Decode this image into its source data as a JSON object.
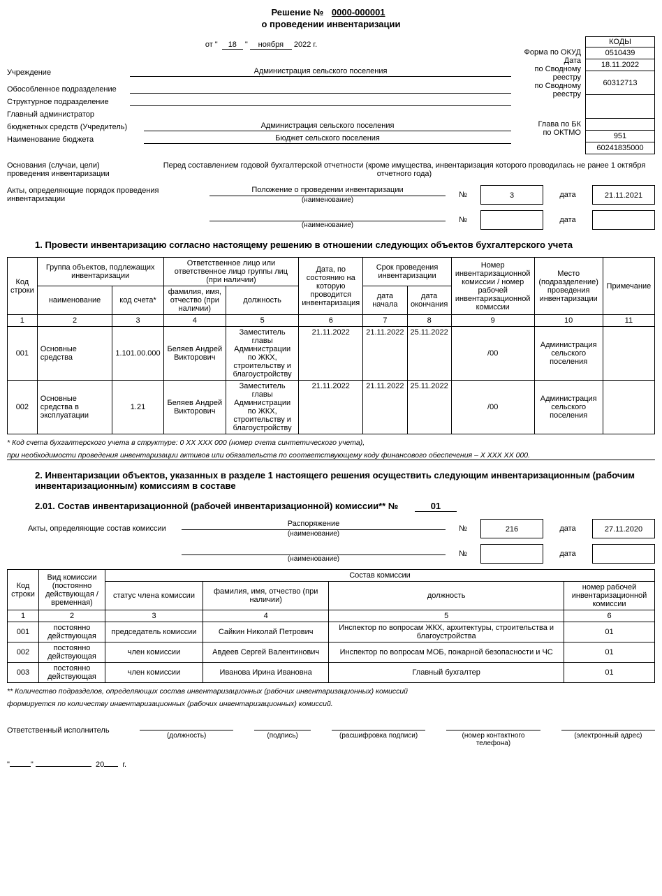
{
  "header": {
    "title_prefix": "Решение  №",
    "title_number": "0000-000001",
    "subtitle": "о проведении инвентаризации",
    "date_from": "от",
    "date_day": "18",
    "date_month": "ноября",
    "date_year": "2022 г."
  },
  "codes": {
    "header": "КОДЫ",
    "okud": "0510439",
    "date": "18.11.2022",
    "svod1": "60312713",
    "svod2": "",
    "empty1": "",
    "bk": "951",
    "oktmo": "60241835000"
  },
  "right_labels": {
    "okud": "Форма по ОКУД",
    "date": "Дата",
    "svod1a": "по Сводному",
    "svod1b": "реестру",
    "svod2a": "по Сводному",
    "svod2b": "реестру",
    "bk": "Глава по БК",
    "oktmo": "по ОКТМО"
  },
  "fields": {
    "institution_label": "Учреждение",
    "institution": "Администрация сельского поселения",
    "subdivision_label": "Обособленное подразделение",
    "subdivision": "",
    "struct_label": "Структурное подразделение",
    "struct": "",
    "admin_label1": "Главный администратор",
    "admin_label2": "бюджетных средств (Учредитель)",
    "admin": "Администрация сельского поселения",
    "budget_label": "Наименование бюджета",
    "budget": "Бюджет сельского поселения"
  },
  "reason": {
    "label1": "Основания (случаи, цели)",
    "label2": "проведения инвентаризации",
    "value": "Перед составлением годовой бухгалтерской отчетности (кроме имущества, инвентаризация которого проводилась не ранее 1 октября отчетного года)"
  },
  "acts": {
    "label": "Акты, определяющие порядок проведения инвентаризации",
    "name1": "Положение о проведении инвентаризации",
    "sub": "(наименование)",
    "no_label": "№",
    "no1": "3",
    "date_label": "дата",
    "date1": "21.11.2021",
    "name2": "",
    "no2": "",
    "date2": ""
  },
  "section1": {
    "title": "1. Провести инвентаризацию согласно настоящему решению в отношении следующих объектов бухгалтерского учета",
    "headers": {
      "code": "Код строки",
      "group": "Группа объектов, подлежащих инвентаризации",
      "group_name": "наименование",
      "group_code": "код счета*",
      "resp": "Ответственное лицо или ответственное лицо группы лиц (при наличии)",
      "resp_fio": "фамилия, имя, отчество (при наличии)",
      "resp_pos": "должность",
      "asof": "Дата, по состоянию на которую проводится инвентаризация",
      "period": "Срок проведения инвентаризации",
      "period_start": "дата начала",
      "period_end": "дата окончания",
      "commission": "Номер инвентаризационной комиссии / номер рабочей инвентаризационной комиссии",
      "place": "Место (подразделение) проведения инвентаризации",
      "note": "Примечание"
    },
    "colnums": [
      "1",
      "2",
      "3",
      "4",
      "5",
      "6",
      "7",
      "8",
      "9",
      "10",
      "11"
    ],
    "rows": [
      {
        "code": "001",
        "name": "Основные средства",
        "acct": "1.101.00.000",
        "fio": "Беляев Андрей Викторович",
        "pos": "Заместитель главы Администрации по ЖКХ, строительству и благоустройству",
        "asof": "21.11.2022",
        "start": "21.11.2022",
        "end": "25.11.2022",
        "comm": "/00",
        "place": "Администрация сельского поселения",
        "note": ""
      },
      {
        "code": "002",
        "name": "Основные средства в эксплуатации",
        "acct": "1.21",
        "fio": "Беляев Андрей Викторович",
        "pos": "Заместитель главы Администрации по ЖКХ, строительству и благоустройству",
        "asof": "21.11.2022",
        "start": "21.11.2022",
        "end": "25.11.2022",
        "comm": "/00",
        "place": "Администрация сельского поселения",
        "note": ""
      }
    ]
  },
  "footnote1a": "* Код счета бухгалтерского учета в структуре: 0 XX XXX 000 (номер счета синтетического учета),",
  "footnote1b": "при необходимости проведения инвентаризации активов или обязательств по соответствующему коду финансового обеспечения – X XXX XX 000.",
  "section2": {
    "title": "2. Инвентаризации объектов, указанных в разделе 1 настоящего решения осуществить следующим инвентаризационным (рабочим инвентаризационным) комиссиям в составе",
    "subtitle_prefix": "2.01. Состав инвентаризационной (рабочей инвентаризационной) комиссии** №",
    "subtitle_number": "01",
    "acts_label": "Акты, определяющие состав комиссии",
    "acts_name1": "Распоряжение",
    "acts_sub": "(наименование)",
    "acts_no1": "216",
    "acts_date1": "27.11.2020",
    "acts_name2": "",
    "acts_no2": "",
    "acts_date2": "",
    "headers": {
      "code": "Код строки",
      "type": "Вид комиссии (постоянно действующая / временная)",
      "composition": "Состав комиссии",
      "status": "статус члена комиссии",
      "fio": "фамилия, имя, отчество (при наличии)",
      "pos": "должность",
      "num": "номер рабочей инвентаризационной комиссии"
    },
    "colnums": [
      "1",
      "2",
      "3",
      "4",
      "5",
      "6"
    ],
    "rows": [
      {
        "code": "001",
        "type": "постоянно действующая",
        "status": "председатель комиссии",
        "fio": "Сайкин Николай Петрович",
        "pos": "Инспектор по вопросам ЖКХ, архитектуры, строительства и благоустройства",
        "num": "01"
      },
      {
        "code": "002",
        "type": "постоянно действующая",
        "status": "член комиссии",
        "fio": "Авдеев Сергей Валентинович",
        "pos": "Инспектор по вопросам МОБ, пожарной безопасности и ЧС",
        "num": "01"
      },
      {
        "code": "003",
        "type": "постоянно действующая",
        "status": "член комиссии",
        "fio": "Иванова Ирина Ивановна",
        "pos": "Главный бухгалтер",
        "num": "01"
      }
    ]
  },
  "footnote2a": "** Количество подразделов, определяющих состав инвентаризационных (рабочих инвентаризационных) комиссий",
  "footnote2b": "формируется по количеству инвентаризационных (рабочих инвентаризационных) комиссий.",
  "signatory": {
    "label": "Ответственный исполнитель",
    "position_hint": "(должность)",
    "sign_hint": "(подпись)",
    "decode_hint": "(расшифровка подписи)",
    "phone_hint": "(номер контактного телефона)",
    "email_hint": "(электронный адрес)"
  },
  "bottom_date": {
    "year_suffix": "20",
    "g": "г."
  }
}
